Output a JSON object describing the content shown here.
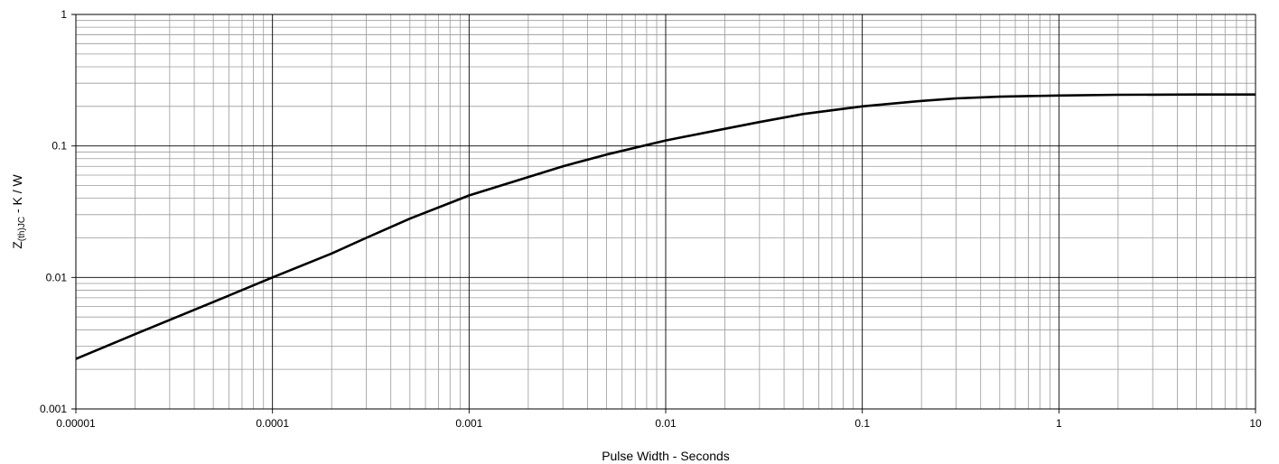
{
  "chart_data": {
    "type": "line",
    "title": "",
    "xlabel": "Pulse Width - Seconds",
    "ylabel": "Z(th)JC - K / W",
    "ylabel_main": "Z",
    "ylabel_sub": "(th)JC",
    "ylabel_rest": " - K / W",
    "xscale": "log",
    "yscale": "log",
    "xlim": [
      1e-05,
      10
    ],
    "ylim": [
      0.001,
      1
    ],
    "grid": true,
    "xticks": [
      1e-05,
      0.0001,
      0.001,
      0.01,
      0.1,
      1,
      10
    ],
    "xtick_labels": [
      "0.00001",
      "0.0001",
      "0.001",
      "0.01",
      "0.1",
      "1",
      "10"
    ],
    "yticks": [
      0.001,
      0.01,
      0.1,
      1
    ],
    "ytick_labels": [
      "0.001",
      "0.01",
      "0.1",
      "1"
    ],
    "series": [
      {
        "color": "#000000",
        "x": [
          1e-05,
          2e-05,
          5e-05,
          0.0001,
          0.0002,
          0.0003,
          0.0005,
          0.001,
          0.002,
          0.003,
          0.005,
          0.01,
          0.02,
          0.03,
          0.05,
          0.1,
          0.2,
          0.3,
          0.5,
          1,
          2,
          5,
          10
        ],
        "y": [
          0.0024,
          0.0037,
          0.0065,
          0.01,
          0.0152,
          0.02,
          0.028,
          0.042,
          0.058,
          0.07,
          0.086,
          0.11,
          0.135,
          0.152,
          0.175,
          0.2,
          0.22,
          0.23,
          0.237,
          0.242,
          0.245,
          0.246,
          0.246
        ]
      }
    ]
  }
}
